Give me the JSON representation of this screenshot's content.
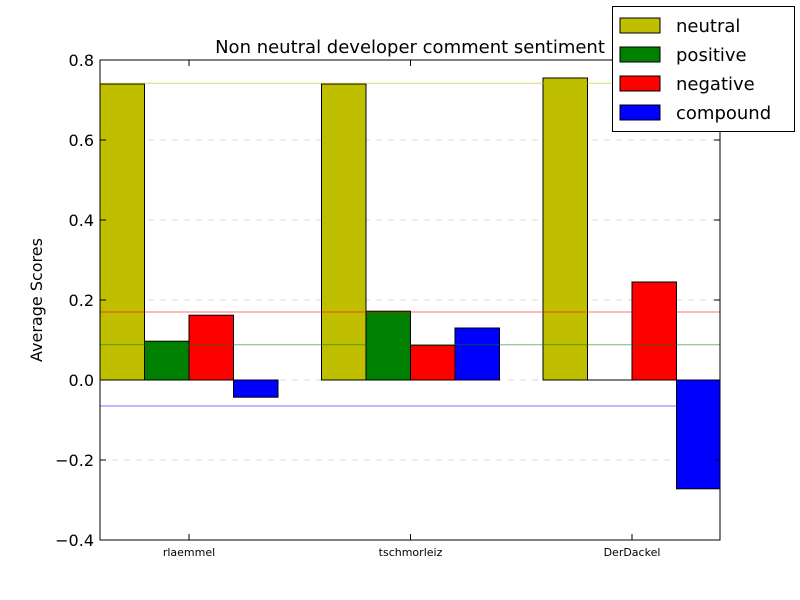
{
  "chart_data": {
    "type": "bar",
    "title": "Non neutral developer comment sentiment",
    "xlabel": "",
    "ylabel": "Average Scores",
    "categories": [
      "rlaemmel",
      "tschmorleiz",
      "DerDackel"
    ],
    "series": [
      {
        "name": "neutral",
        "values": [
          0.74,
          0.74,
          0.755
        ],
        "color": "#bfbf00"
      },
      {
        "name": "positive",
        "values": [
          0.097,
          0.172,
          0.0
        ],
        "color": "#008000"
      },
      {
        "name": "negative",
        "values": [
          0.162,
          0.087,
          0.245
        ],
        "color": "#ff0000"
      },
      {
        "name": "compound",
        "values": [
          -0.043,
          0.13,
          -0.272
        ],
        "color": "#0000ff"
      }
    ],
    "reference_lines": [
      {
        "series": "neutral",
        "value": 0.742
      },
      {
        "series": "negative",
        "value": 0.17
      },
      {
        "series": "positive",
        "value": 0.088
      },
      {
        "series": "compound",
        "value": -0.065
      }
    ],
    "ylim": [
      -0.4,
      0.8
    ],
    "yticks": [
      -0.4,
      -0.2,
      0.0,
      0.2,
      0.4,
      0.6,
      0.8
    ],
    "ytick_labels": [
      "−0.4",
      "−0.2",
      "0.0",
      "0.2",
      "0.4",
      "0.6",
      "0.8"
    ],
    "grid": "horizontal-dashed",
    "legend_position": "top-right"
  }
}
